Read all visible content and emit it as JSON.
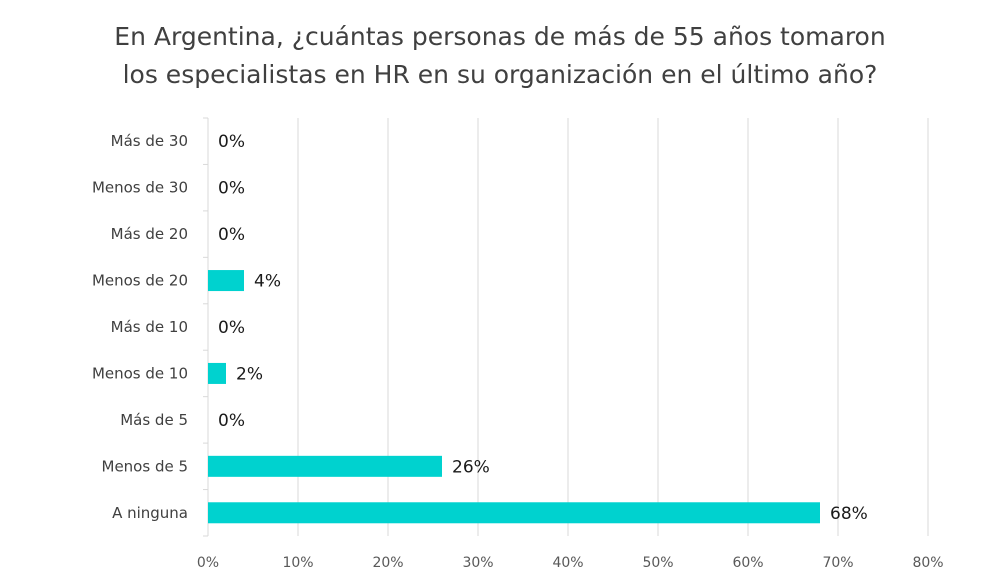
{
  "chart_data": {
    "type": "bar",
    "orientation": "horizontal",
    "title_lines": [
      "En Argentina, ¿cuántas personas de más de 55 años tomaron",
      "los especialistas en HR en su organización en el último año?"
    ],
    "categories": [
      "Más de 30",
      "Menos de 30",
      "Más de 20",
      "Menos de 20",
      "Más de 10",
      "Menos de 10",
      "Más de 5",
      "Menos de 5",
      "A ninguna"
    ],
    "values": [
      0,
      0,
      0,
      4,
      0,
      2,
      0,
      26,
      68
    ],
    "value_labels": [
      "0%",
      "0%",
      "0%",
      "4%",
      "0%",
      "2%",
      "0%",
      "26%",
      "68%"
    ],
    "xlim": [
      0,
      80
    ],
    "x_ticks": [
      0,
      10,
      20,
      30,
      40,
      50,
      60,
      70,
      80
    ],
    "x_tick_labels": [
      "0%",
      "10%",
      "20%",
      "30%",
      "40%",
      "50%",
      "60%",
      "70%",
      "80%"
    ],
    "xlabel": "",
    "ylabel": "",
    "grid": true,
    "bar_color": "#00D2CF",
    "grid_color": "#D9D9D9"
  }
}
